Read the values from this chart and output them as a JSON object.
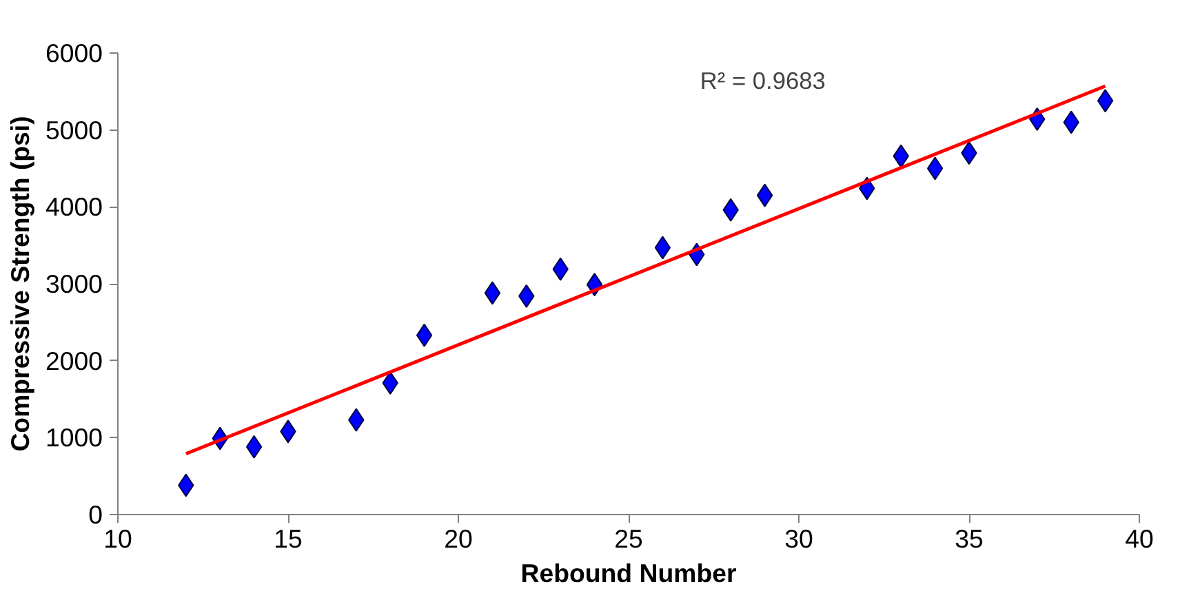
{
  "chart_data": {
    "type": "scatter",
    "xlabel": "Rebound Number",
    "ylabel": "Compressive Strength (psi)",
    "xlim": [
      10,
      40
    ],
    "xticks": [
      10,
      15,
      20,
      25,
      30,
      35,
      40
    ],
    "ylim": [
      0,
      6000
    ],
    "yticks": [
      0,
      1000,
      2000,
      3000,
      4000,
      5000,
      6000
    ],
    "grid": false,
    "marker": "diamond",
    "annotations": [
      "R² = 0.9683"
    ],
    "series": [
      {
        "color": "#0000ff",
        "x": [
          12,
          13,
          14,
          15,
          17,
          18,
          19,
          21,
          22,
          23,
          24,
          26,
          27,
          28,
          29,
          32,
          33,
          34,
          35,
          37,
          38,
          39
        ],
        "values": [
          380,
          990,
          880,
          1080,
          1230,
          1710,
          2330,
          2880,
          2840,
          3190,
          2990,
          3470,
          3380,
          3960,
          4150,
          4240,
          4660,
          4500,
          4700,
          5140,
          5100,
          5380
        ]
      },
      {
        "type": "line",
        "color": "#ff0000",
        "marker": "none",
        "x": [
          12,
          39
        ],
        "values": [
          790,
          5570
        ]
      }
    ]
  }
}
